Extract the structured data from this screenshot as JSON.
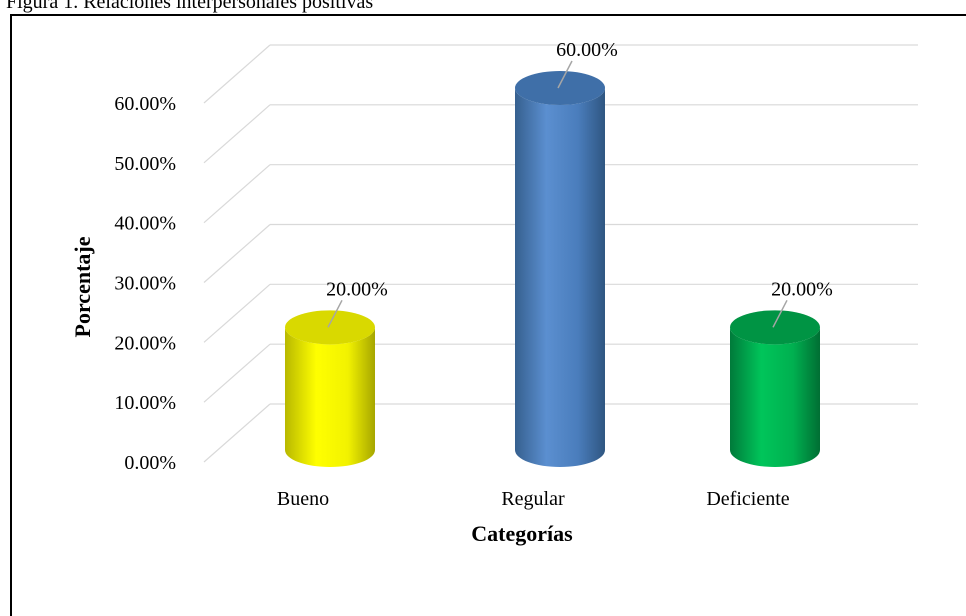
{
  "figure": {
    "caption": "Figura 1. Relaciones interpersonales positivas"
  },
  "chart_data": {
    "type": "bar",
    "style": "3d-cylinder",
    "categories": [
      "Bueno",
      "Regular",
      "Deficiente"
    ],
    "values": [
      20.0,
      60.0,
      20.0
    ],
    "data_labels": [
      "20.00%",
      "60.00%",
      "20.00%"
    ],
    "bar_colors": [
      "#ffff00",
      "#4f81bd",
      "#00b050"
    ],
    "xlabel": "Categorías",
    "ylabel": "Porcentaje",
    "ylim": [
      0,
      60
    ],
    "yticks": [
      0,
      10,
      20,
      30,
      40,
      50,
      60
    ],
    "ytick_labels": [
      "0.00%",
      "10.00%",
      "20.00%",
      "30.00%",
      "40.00%",
      "50.00%",
      "60.00%"
    ],
    "grid": true,
    "legend": "none"
  }
}
